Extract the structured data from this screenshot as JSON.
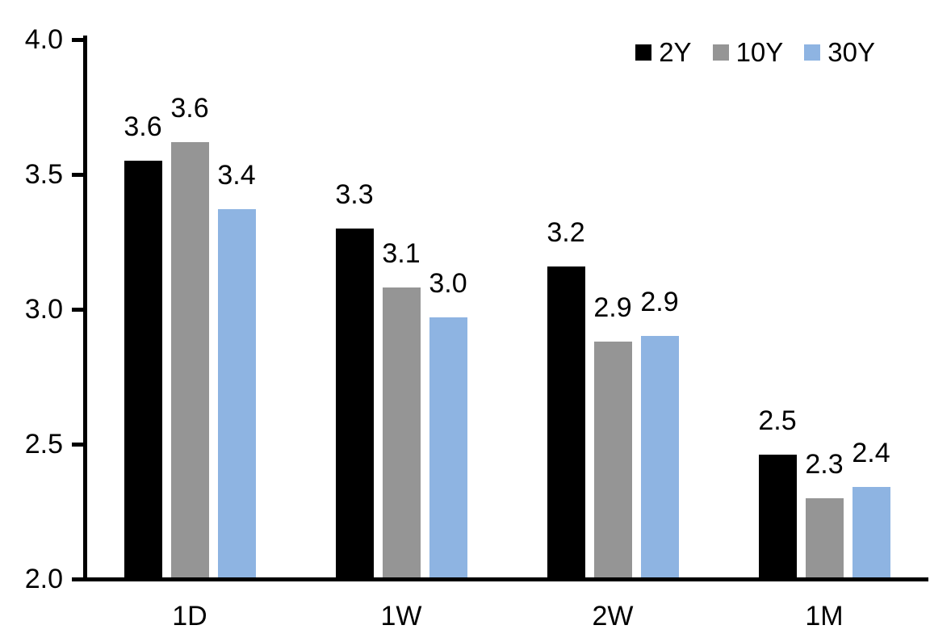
{
  "chart_data": {
    "type": "bar",
    "title": "",
    "xlabel": "",
    "ylabel": "",
    "categories": [
      "1D",
      "1W",
      "2W",
      "1M"
    ],
    "series": [
      {
        "name": "2Y",
        "color": "#000000",
        "values": [
          3.6,
          3.3,
          3.2,
          2.5
        ],
        "labels": [
          "3.6",
          "3.3",
          "3.2",
          "2.5"
        ],
        "values_precise": [
          3.55,
          3.3,
          3.16,
          2.46
        ]
      },
      {
        "name": "10Y",
        "color": "#959595",
        "values": [
          3.6,
          3.1,
          2.9,
          2.3
        ],
        "labels": [
          "3.6",
          "3.1",
          "2.9",
          "2.3"
        ],
        "values_precise": [
          3.62,
          3.08,
          2.88,
          2.3
        ]
      },
      {
        "name": "30Y",
        "color": "#8EB4E2",
        "values": [
          3.4,
          3.0,
          2.9,
          2.4
        ],
        "labels": [
          "3.4",
          "3.0",
          "2.9",
          "2.4"
        ],
        "values_precise": [
          3.37,
          2.97,
          2.9,
          2.34
        ]
      }
    ],
    "ylim": [
      2.0,
      4.0
    ],
    "ytick_interval": 0.5,
    "yticks": [
      4.0,
      3.5,
      3.0,
      2.5,
      2.0
    ],
    "ytick_labels": [
      "4.0",
      "3.5",
      "3.0",
      "2.5",
      "2.0"
    ],
    "legend": {
      "position": "top-right",
      "entries": [
        "2Y",
        "10Y",
        "30Y"
      ]
    },
    "grid": false,
    "axis_color": "#000000",
    "background_color": "#FFFFFF"
  }
}
